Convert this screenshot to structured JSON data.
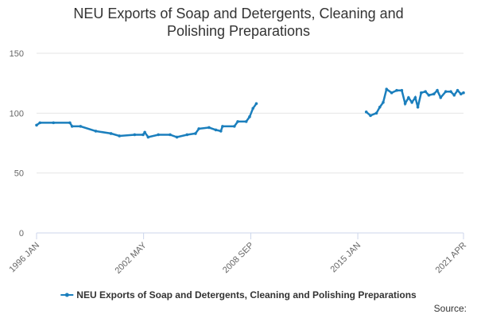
{
  "chart_data": {
    "type": "line",
    "title": "NEU Exports of Soap and Detergents, Cleaning and Polishing Preparations",
    "source": "Source:",
    "x": [
      1996.0,
      1996.2,
      1997.0,
      1997.97,
      1998.1,
      1998.6,
      1999.5,
      2000.4,
      2000.9,
      2001.8,
      2002.3,
      2002.4,
      2002.6,
      2003.2,
      2003.9,
      2004.3,
      2004.9,
      2005.4,
      2005.6,
      2006.2,
      2006.6,
      2006.9,
      2007.0,
      2007.7,
      2007.9,
      2008.4,
      2008.6,
      2008.8,
      2009.0,
      2012.0,
      2015.5,
      2015.75,
      2016.1,
      2016.3,
      2016.5,
      2016.7,
      2017.0,
      2017.3,
      2017.6,
      2017.8,
      2018.0,
      2018.2,
      2018.4,
      2018.55,
      2018.75,
      2019.0,
      2019.2,
      2019.5,
      2019.7,
      2019.9,
      2020.2,
      2020.5,
      2020.7,
      2020.9,
      2021.1,
      2021.25
    ],
    "series": [
      {
        "name": "NEU Exports of Soap and Detergents, Cleaning and Polishing Preparations",
        "color": "#1b7fbd",
        "values": [
          90,
          92,
          92,
          92,
          89,
          89,
          85,
          83,
          81,
          82,
          82,
          84,
          80,
          82,
          82,
          80,
          82,
          83,
          87,
          88,
          86,
          85,
          89,
          89,
          93,
          93,
          97,
          104,
          108,
          null,
          101,
          98,
          100,
          105,
          109,
          120,
          117,
          119,
          119,
          108,
          113,
          109,
          113,
          105,
          117,
          118,
          115,
          116,
          119,
          113,
          118,
          118,
          115,
          119,
          116,
          117
        ]
      }
    ],
    "xlim": [
      1996.0,
      2021.25
    ],
    "xticks": [
      {
        "value": 1996.0,
        "label": "1996 JAN"
      },
      {
        "value": 2002.33,
        "label": "2002 MAY"
      },
      {
        "value": 2008.67,
        "label": "2008 SEP"
      },
      {
        "value": 2015.0,
        "label": "2015 JAN"
      },
      {
        "value": 2021.25,
        "label": "2021 APR"
      }
    ],
    "ylim": [
      0,
      150
    ],
    "yticks": [
      0,
      50,
      100,
      150
    ],
    "grid": true
  }
}
